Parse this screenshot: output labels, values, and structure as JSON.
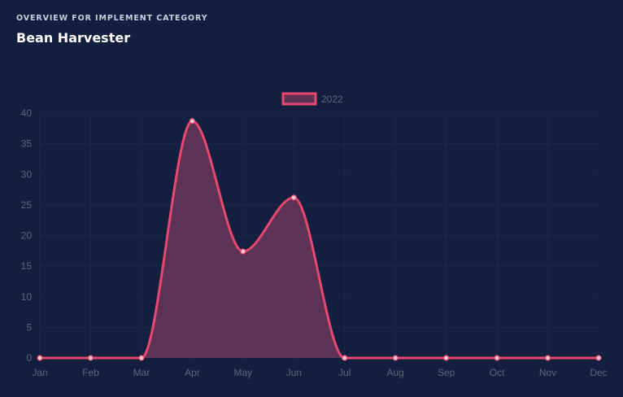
{
  "header": {
    "overline": "OVERVIEW FOR IMPLEMENT CATEGORY",
    "title": "Bean Harvester"
  },
  "chart_data": {
    "type": "area",
    "categories": [
      "Jan",
      "Feb",
      "Mar",
      "Apr",
      "May",
      "Jun",
      "Jul",
      "Aug",
      "Sep",
      "Oct",
      "Nov",
      "Dec"
    ],
    "series": [
      {
        "name": "2022",
        "values": [
          0,
          0,
          0,
          38.7,
          17.4,
          26.2,
          0,
          0,
          0,
          0,
          0,
          0
        ],
        "line_color": "#e8486f",
        "fill_color": "#5e3254"
      }
    ],
    "yticks": [
      "0",
      "5",
      "10",
      "15",
      "20",
      "25",
      "30",
      "35",
      "40"
    ],
    "ylim": [
      0,
      40
    ],
    "grid": true,
    "legend_position": "top-center",
    "curve": "smooth"
  },
  "colors": {
    "background": "#131f3e",
    "grid": "#1b2747",
    "tick_text": "#5f6676"
  }
}
